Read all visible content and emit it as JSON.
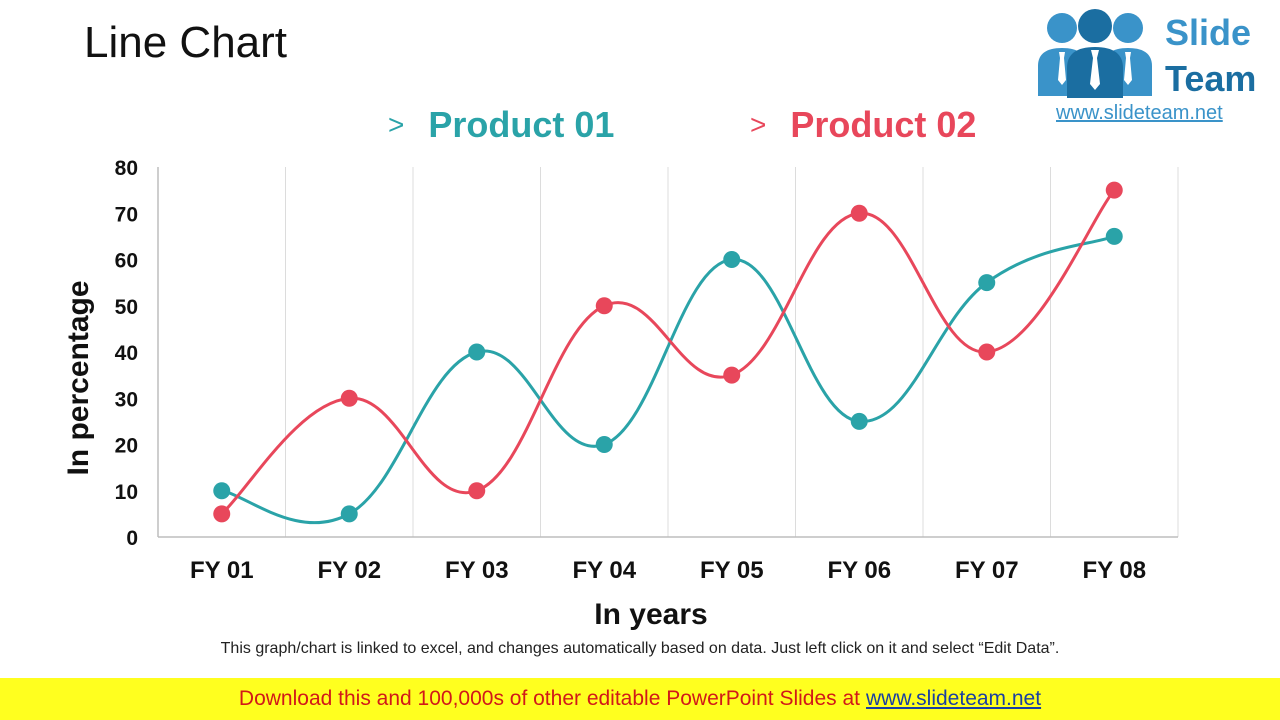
{
  "title": "Line Chart",
  "logo": {
    "word1": "Slide",
    "word2": "Team",
    "url": "www.slideteam.net",
    "colors": {
      "light": "#3a93c9",
      "dark": "#1b6ea1"
    }
  },
  "legend": {
    "marker": ">",
    "items": [
      {
        "label": "Product 01",
        "color": "#2aa3a8"
      },
      {
        "label": "Product 02",
        "color": "#e8475b"
      }
    ]
  },
  "chart_data": {
    "type": "line",
    "categories": [
      "FY 01",
      "FY 02",
      "FY 03",
      "FY 04",
      "FY 05",
      "FY 06",
      "FY 07",
      "FY 08"
    ],
    "series": [
      {
        "name": "Product 01",
        "color": "#2aa3a8",
        "values": [
          10,
          5,
          40,
          20,
          60,
          25,
          55,
          65
        ]
      },
      {
        "name": "Product 02",
        "color": "#e8475b",
        "values": [
          5,
          30,
          10,
          50,
          35,
          70,
          40,
          75
        ]
      }
    ],
    "y_ticks": [
      "0",
      "10",
      "20",
      "30",
      "40",
      "50",
      "60",
      "70",
      "80"
    ],
    "ylim": [
      0,
      80
    ],
    "xlabel": "In years",
    "ylabel": "In percentage",
    "smooth": true,
    "grid": "vertical",
    "legend_position": "top"
  },
  "footnote": "This graph/chart is linked to excel, and changes automatically based on data. Just left click on it and select “Edit Data”.",
  "banner": {
    "text": "Download this and 100,000s of other editable PowerPoint Slides at",
    "link": "www.slideteam.net"
  }
}
